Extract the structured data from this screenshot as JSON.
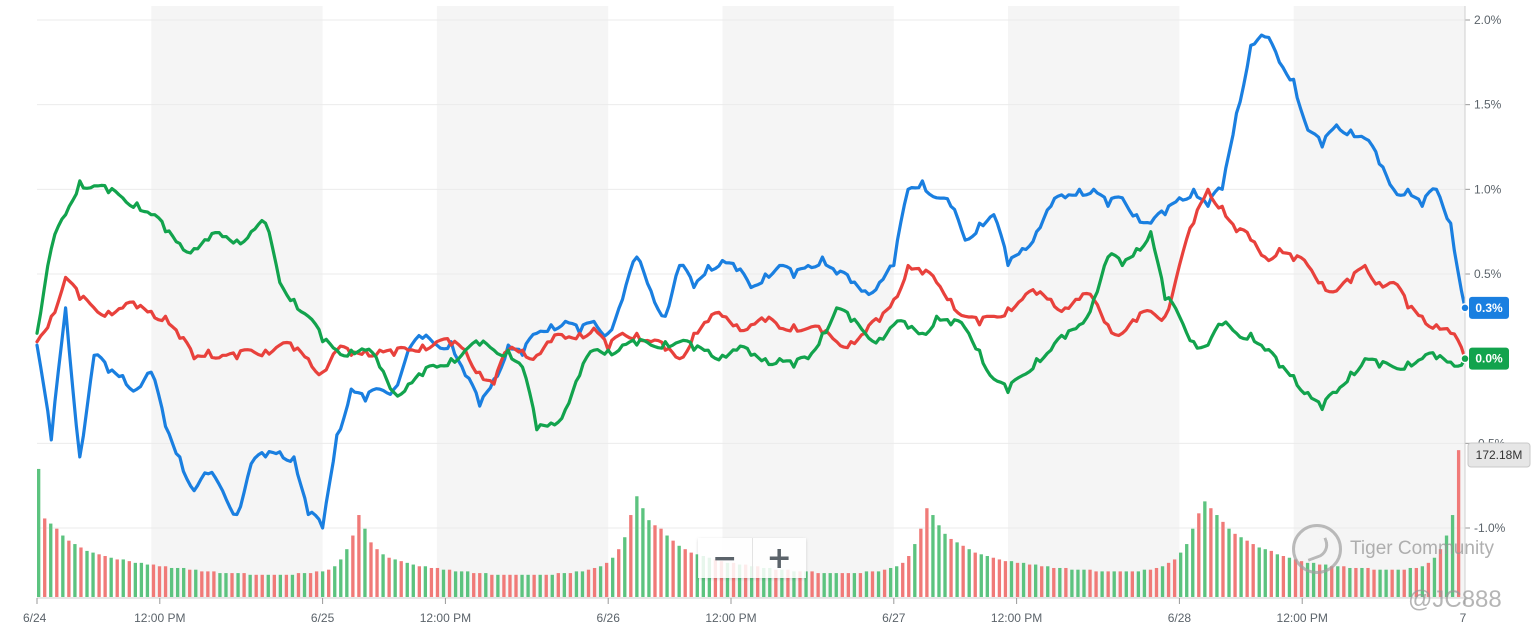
{
  "chart_data": {
    "type": "line",
    "title": "",
    "xlabel": "",
    "ylabel": "",
    "ylim": [
      -1.35,
      2.1
    ],
    "grid": true,
    "x_ticks": [
      "6/24",
      "12:00 PM",
      "6/25",
      "12:00 PM",
      "6/26",
      "12:00 PM",
      "6/27",
      "12:00 PM",
      "6/28",
      "12:00 PM",
      "7"
    ],
    "x_tick_days": [
      0,
      0.43,
      1,
      1.43,
      2,
      2.43,
      3,
      3.43,
      4,
      4.43,
      5
    ],
    "y_ticks": [
      {
        "value": 2.0,
        "label": "2.0%"
      },
      {
        "value": 1.5,
        "label": "1.5%"
      },
      {
        "value": 1.0,
        "label": "1.0%"
      },
      {
        "value": 0.5,
        "label": "0.5%"
      },
      {
        "value": -0.5,
        "label": "-0.5%"
      },
      {
        "value": -1.0,
        "label": "-1.0%"
      }
    ],
    "series": [
      {
        "color": "#1a7fe0",
        "last_label": "0.3%",
        "x": [
          0,
          0.05,
          0.1,
          0.15,
          0.2,
          0.25,
          0.3,
          0.35,
          0.4,
          0.45,
          0.5,
          0.55,
          0.6,
          0.65,
          0.7,
          0.75,
          0.8,
          0.85,
          0.9,
          0.95,
          1,
          1.05,
          1.1,
          1.15,
          1.2,
          1.25,
          1.3,
          1.35,
          1.4,
          1.45,
          1.5,
          1.55,
          1.6,
          1.65,
          1.7,
          1.75,
          1.8,
          1.85,
          1.9,
          1.95,
          2,
          2.05,
          2.1,
          2.15,
          2.2,
          2.25,
          2.3,
          2.35,
          2.4,
          2.45,
          2.5,
          2.55,
          2.6,
          2.65,
          2.7,
          2.75,
          2.8,
          2.85,
          2.9,
          2.95,
          3,
          3.05,
          3.1,
          3.15,
          3.2,
          3.25,
          3.3,
          3.35,
          3.4,
          3.45,
          3.5,
          3.55,
          3.6,
          3.65,
          3.7,
          3.75,
          3.8,
          3.85,
          3.9,
          3.95,
          4,
          4.05,
          4.1,
          4.15,
          4.2,
          4.25,
          4.3,
          4.35,
          4.4,
          4.45,
          4.5,
          4.55,
          4.6,
          4.65,
          4.7,
          4.75,
          4.8,
          4.85,
          4.9,
          4.95,
          5
        ],
        "values": [
          0.08,
          -0.48,
          0.3,
          -0.58,
          0.02,
          -0.08,
          -0.1,
          -0.18,
          -0.08,
          -0.4,
          -0.58,
          -0.78,
          -0.68,
          -0.78,
          -0.92,
          -0.62,
          -0.58,
          -0.55,
          -0.58,
          -0.92,
          -1.0,
          -0.45,
          -0.18,
          -0.25,
          -0.18,
          -0.18,
          0.05,
          0.12,
          0.08,
          0.1,
          -0.1,
          -0.28,
          -0.12,
          0.08,
          0.02,
          0.15,
          0.2,
          0.22,
          0.15,
          0.22,
          0.15,
          0.35,
          0.6,
          0.4,
          0.25,
          0.55,
          0.42,
          0.55,
          0.58,
          0.52,
          0.42,
          0.5,
          0.55,
          0.48,
          0.55,
          0.6,
          0.5,
          0.45,
          0.4,
          0.45,
          0.55,
          1.0,
          1.05,
          0.95,
          0.9,
          0.7,
          0.8,
          0.85,
          0.55,
          0.65,
          0.75,
          0.9,
          0.95,
          1.0,
          1.0,
          0.9,
          0.95,
          0.85,
          0.8,
          0.85,
          0.95,
          1.0,
          0.9,
          1.0,
          1.45,
          1.85,
          1.9,
          1.75,
          1.65,
          1.35,
          1.25,
          1.38,
          1.35,
          1.3,
          1.15,
          1.0,
          1.0,
          0.9,
          1.0,
          0.8,
          0.3
        ],
        "data_name": "series-blue-line"
      },
      {
        "color": "#e8413c",
        "last_label": "",
        "x": [
          0,
          0.05,
          0.1,
          0.15,
          0.2,
          0.25,
          0.3,
          0.35,
          0.4,
          0.45,
          0.5,
          0.55,
          0.6,
          0.65,
          0.7,
          0.75,
          0.8,
          0.85,
          0.9,
          0.95,
          1,
          1.05,
          1.1,
          1.15,
          1.2,
          1.25,
          1.3,
          1.35,
          1.4,
          1.45,
          1.5,
          1.55,
          1.6,
          1.65,
          1.7,
          1.75,
          1.8,
          1.85,
          1.9,
          1.95,
          2,
          2.05,
          2.1,
          2.15,
          2.2,
          2.25,
          2.3,
          2.35,
          2.4,
          2.45,
          2.5,
          2.55,
          2.6,
          2.65,
          2.7,
          2.75,
          2.8,
          2.85,
          2.9,
          2.95,
          3,
          3.05,
          3.1,
          3.15,
          3.2,
          3.25,
          3.3,
          3.35,
          3.4,
          3.45,
          3.5,
          3.55,
          3.6,
          3.65,
          3.7,
          3.75,
          3.8,
          3.85,
          3.9,
          3.95,
          4,
          4.05,
          4.1,
          4.15,
          4.2,
          4.25,
          4.3,
          4.35,
          4.4,
          4.45,
          4.5,
          4.55,
          4.6,
          4.65,
          4.7,
          4.75,
          4.8,
          4.85,
          4.9,
          4.95,
          5
        ],
        "values": [
          0.1,
          0.25,
          0.48,
          0.35,
          0.3,
          0.28,
          0.3,
          0.3,
          0.28,
          0.25,
          0.12,
          0.0,
          0.05,
          0.02,
          0.0,
          0.05,
          0.05,
          0.08,
          0.05,
          0.0,
          -0.08,
          0.05,
          0.02,
          0.05,
          0.05,
          0.02,
          0.05,
          0.08,
          0.1,
          0.08,
          0.05,
          -0.08,
          -0.15,
          0.05,
          0.05,
          0.02,
          0.1,
          0.12,
          0.15,
          0.18,
          0.05,
          0.15,
          0.15,
          0.1,
          0.05,
          0.0,
          0.15,
          0.22,
          0.25,
          0.2,
          0.2,
          0.22,
          0.18,
          0.2,
          0.18,
          0.15,
          0.1,
          0.1,
          0.15,
          0.22,
          0.35,
          0.55,
          0.5,
          0.45,
          0.35,
          0.25,
          0.2,
          0.25,
          0.3,
          0.35,
          0.38,
          0.35,
          0.3,
          0.35,
          0.35,
          0.2,
          0.15,
          0.22,
          0.28,
          0.25,
          0.55,
          0.8,
          1.0,
          0.9,
          0.75,
          0.7,
          0.6,
          0.65,
          0.58,
          0.55,
          0.45,
          0.4,
          0.45,
          0.55,
          0.45,
          0.45,
          0.3,
          0.25,
          0.2,
          0.15,
          0.0
        ],
        "data_name": "series-red-line"
      },
      {
        "color": "#12a34d",
        "last_label": "0.0%",
        "x": [
          0,
          0.05,
          0.1,
          0.15,
          0.2,
          0.25,
          0.3,
          0.35,
          0.4,
          0.45,
          0.5,
          0.55,
          0.6,
          0.65,
          0.7,
          0.75,
          0.8,
          0.85,
          0.9,
          0.95,
          1,
          1.05,
          1.1,
          1.15,
          1.2,
          1.25,
          1.3,
          1.35,
          1.4,
          1.45,
          1.5,
          1.55,
          1.6,
          1.65,
          1.7,
          1.75,
          1.8,
          1.85,
          1.9,
          1.95,
          2,
          2.05,
          2.1,
          2.15,
          2.2,
          2.25,
          2.3,
          2.35,
          2.4,
          2.45,
          2.5,
          2.55,
          2.6,
          2.65,
          2.7,
          2.75,
          2.8,
          2.85,
          2.9,
          2.95,
          3,
          3.05,
          3.1,
          3.15,
          3.2,
          3.25,
          3.3,
          3.35,
          3.4,
          3.45,
          3.5,
          3.55,
          3.6,
          3.65,
          3.7,
          3.75,
          3.8,
          3.85,
          3.9,
          3.95,
          4,
          4.05,
          4.1,
          4.15,
          4.2,
          4.25,
          4.3,
          4.35,
          4.4,
          4.45,
          4.5,
          4.55,
          4.6,
          4.65,
          4.7,
          4.75,
          4.8,
          4.85,
          4.9,
          4.95,
          5
        ],
        "values": [
          0.15,
          0.65,
          0.85,
          1.05,
          1.02,
          0.98,
          0.95,
          0.92,
          0.85,
          0.75,
          0.68,
          0.65,
          0.7,
          0.72,
          0.7,
          0.75,
          0.8,
          0.45,
          0.35,
          0.25,
          0.1,
          0.05,
          0.05,
          0.05,
          -0.05,
          -0.2,
          -0.15,
          -0.1,
          -0.05,
          0.0,
          0.05,
          0.08,
          0.05,
          0.05,
          -0.05,
          -0.42,
          -0.38,
          -0.3,
          -0.1,
          0.05,
          0.05,
          0.08,
          0.08,
          0.08,
          0.1,
          0.1,
          0.05,
          0.05,
          0.02,
          0.05,
          0.02,
          0.0,
          0.0,
          -0.05,
          0.0,
          0.15,
          0.3,
          0.22,
          0.15,
          0.12,
          0.2,
          0.18,
          0.15,
          0.25,
          0.2,
          0.18,
          0.05,
          -0.12,
          -0.2,
          -0.1,
          0.0,
          0.05,
          0.12,
          0.2,
          0.35,
          0.6,
          0.55,
          0.65,
          0.75,
          0.35,
          0.25,
          0.1,
          0.08,
          0.2,
          0.15,
          0.15,
          0.05,
          -0.05,
          -0.1,
          -0.2,
          -0.3,
          -0.2,
          -0.08,
          0.0,
          -0.05,
          -0.05,
          -0.02,
          0.0,
          0.0,
          -0.02,
          0.0
        ],
        "data_name": "series-green-line"
      }
    ],
    "volume": {
      "last_label": "172.18M",
      "up_color": "#5cc37f",
      "down_color": "#f07a78",
      "max": 172.18,
      "values": [
        150,
        92,
        86,
        80,
        72,
        66,
        62,
        58,
        54,
        52,
        50,
        48,
        46,
        44,
        44,
        42,
        40,
        40,
        38,
        38,
        36,
        36,
        34,
        34,
        34,
        32,
        32,
        30,
        30,
        30,
        28,
        28,
        28,
        28,
        28,
        26,
        26,
        26,
        26,
        26,
        26,
        26,
        26,
        28,
        28,
        28,
        30,
        30,
        32,
        36,
        44,
        56,
        72,
        96,
        80,
        64,
        56,
        50,
        46,
        44,
        42,
        40,
        38,
        36,
        36,
        34,
        34,
        32,
        32,
        30,
        30,
        30,
        28,
        28,
        28,
        26,
        26,
        26,
        26,
        26,
        26,
        26,
        26,
        26,
        26,
        26,
        28,
        28,
        28,
        30,
        30,
        32,
        34,
        36,
        40,
        46,
        56,
        70,
        96,
        118,
        104,
        90,
        84,
        80,
        72,
        66,
        60,
        56,
        52,
        50,
        48,
        46,
        44,
        42,
        40,
        40,
        38,
        38,
        36,
        36,
        34,
        34,
        32,
        32,
        32,
        30,
        30,
        30,
        30,
        28,
        28,
        28,
        28,
        28,
        28,
        28,
        28,
        30,
        30,
        30,
        32,
        34,
        36,
        40,
        48,
        62,
        80,
        104,
        96,
        84,
        74,
        68,
        64,
        60,
        56,
        52,
        50,
        48,
        46,
        44,
        42,
        42,
        40,
        40,
        38,
        38,
        36,
        36,
        34,
        34,
        34,
        32,
        32,
        32,
        32,
        30,
        30,
        30,
        30,
        30,
        30,
        30,
        30,
        32,
        32,
        34,
        36,
        40,
        44,
        52,
        62,
        80,
        98,
        112,
        104,
        96,
        88,
        80,
        74,
        70,
        66,
        62,
        58,
        56,
        54,
        50,
        48,
        46,
        44,
        42,
        40,
        40,
        38,
        38,
        36,
        36,
        36,
        34,
        34,
        34,
        34,
        32,
        32,
        32,
        32,
        32,
        32,
        34,
        34,
        36,
        40,
        46,
        56,
        72,
        96,
        172
      ],
      "colors": "gryrgrgrggrrgrgrgggrrrgggrgrrrggrgrgrrgrgrgrgrrgrgggrrgrrgrgrggrgrrgrgggrrgrgrrrggrgrgrgrggrrgrgrgrgggrrgrgrrgggrrgrgrgrggrgrgrgrrgggrrgrgrgrggrrgrrgggrgrgrggrrrgrgrgrgrgrgggrrgrgrgrggrrgrrgggrgrgrgrgrrggrgrgrrggrgrgrgrgrrggr"
    }
  },
  "zoom": {
    "minus": "−",
    "plus": "+"
  },
  "watermark": {
    "brand": "Tiger Community",
    "handle": "@JC888"
  }
}
